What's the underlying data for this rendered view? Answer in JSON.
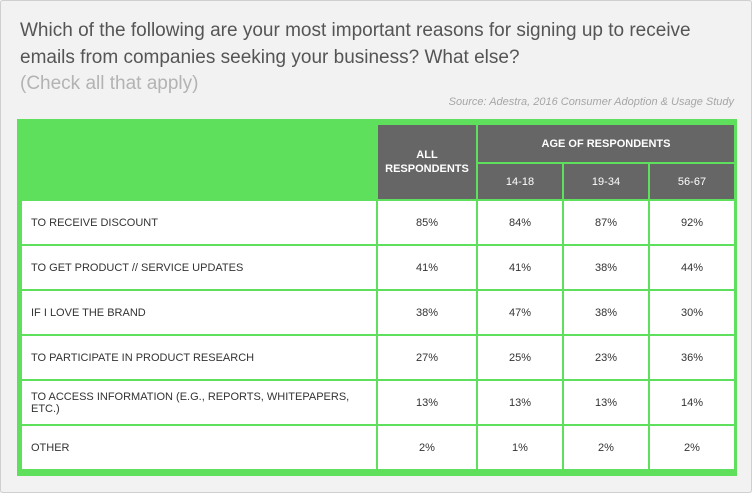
{
  "question": "Which of the following are your most important reasons for signing up to receive emails from companies seeking your business? What else?",
  "instruction": "(Check all that apply)",
  "source": "Source: Adestra, 2016 Consumer Adoption & Usage Study",
  "colors": {
    "accent_green": "#5ee05c",
    "header_gray": "#666666"
  },
  "chart_data": {
    "type": "table",
    "headers": {
      "all": "ALL RESPONDENTS",
      "group": "AGE OF RESPONDENTS",
      "ages": [
        "14-18",
        "19-34",
        "56-67"
      ]
    },
    "rows": [
      {
        "label": "TO RECEIVE DISCOUNT",
        "values": [
          "85%",
          "84%",
          "87%",
          "92%"
        ]
      },
      {
        "label": "TO GET PRODUCT // SERVICE UPDATES",
        "values": [
          "41%",
          "41%",
          "38%",
          "44%"
        ]
      },
      {
        "label": "IF I LOVE THE BRAND",
        "values": [
          "38%",
          "47%",
          "38%",
          "30%"
        ]
      },
      {
        "label": "TO PARTICIPATE IN PRODUCT RESEARCH",
        "values": [
          "27%",
          "25%",
          "23%",
          "36%"
        ]
      },
      {
        "label": "TO ACCESS INFORMATION (E.G., REPORTS, WHITEPAPERS, ETC.)",
        "values": [
          "13%",
          "13%",
          "13%",
          "14%"
        ]
      },
      {
        "label": "OTHER",
        "values": [
          "2%",
          "1%",
          "2%",
          "2%"
        ]
      }
    ]
  }
}
